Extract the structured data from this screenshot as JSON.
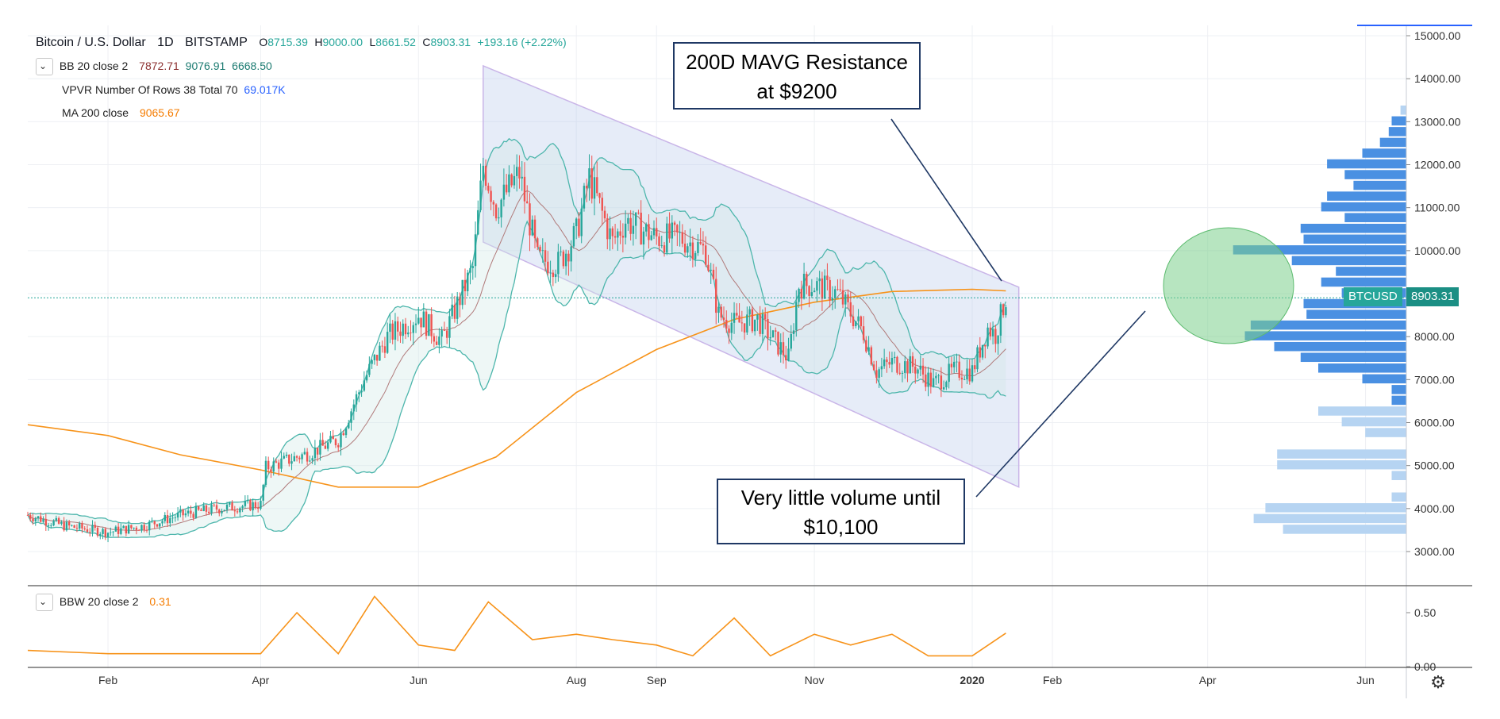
{
  "header": {
    "symbol": "Bitcoin / U.S. Dollar",
    "interval": "1D",
    "exchange": "BITSTAMP",
    "open_label": "O",
    "open": "8715.39",
    "high_label": "H",
    "high": "9000.00",
    "low_label": "L",
    "low": "8661.52",
    "close_label": "C",
    "close": "8903.31",
    "change": "+193.16 (+2.22%)"
  },
  "indicators": {
    "bb": {
      "name": "BB 20 close 2",
      "basis": "7872.71",
      "upper": "9076.91",
      "lower": "6668.50"
    },
    "vpvr": {
      "name": "VPVR Number Of Rows 38 Total 70",
      "value": "69.017K"
    },
    "ma": {
      "name": "MA 200 close",
      "value": "9065.67"
    },
    "bbw": {
      "name": "BBW 20 close 2",
      "value": "0.31"
    }
  },
  "annotations": {
    "resistance_line1": "200D MAVG Resistance",
    "resistance_line2": "at $9200",
    "volume_line1": "Very little volume until",
    "volume_line2": "$10,100"
  },
  "price_tags": {
    "symbol_tag": "BTCUSD",
    "last_price": "8903.31"
  },
  "colors": {
    "up": "#26a69a",
    "down": "#ef5350",
    "ma200": "#f7931a",
    "bb_band": "#4db6ac",
    "channel": "#b7c9ea",
    "vol_dark": "#4a90e2",
    "vol_light": "#b6d4f2",
    "highlight": "#7ccf8c",
    "annotation_border": "#1f3864"
  },
  "chart_data": [
    {
      "type": "line",
      "title": "",
      "xlabel": "",
      "ylabel": "",
      "x_ticks": [
        "Feb",
        "Apr",
        "Jun",
        "Aug",
        "Sep",
        "Nov",
        "2020",
        "Feb",
        "Apr",
        "Jun"
      ],
      "y_ticks": [
        "3000.00",
        "4000.00",
        "5000.00",
        "6000.00",
        "7000.00",
        "8000.00",
        "9000.00",
        "10000.00",
        "11000.00",
        "12000.00",
        "13000.00",
        "14000.00",
        "15000.00"
      ],
      "ylim": [
        2500,
        15300
      ],
      "series": [
        {
          "name": "",
          "dates": [
            "2019-01-01",
            "2019-01-15",
            "2019-02-01",
            "2019-02-15",
            "2019-03-01",
            "2019-03-15",
            "2019-04-01",
            "2019-04-03",
            "2019-04-20",
            "2019-05-01",
            "2019-05-11",
            "2019-05-20",
            "2019-06-01",
            "2019-06-10",
            "2019-06-22",
            "2019-06-26",
            "2019-07-01",
            "2019-07-10",
            "2019-07-17",
            "2019-07-25",
            "2019-08-01",
            "2019-08-06",
            "2019-08-15",
            "2019-08-20",
            "2019-09-01",
            "2019-09-10",
            "2019-09-20",
            "2019-09-25",
            "2019-10-01",
            "2019-10-10",
            "2019-10-22",
            "2019-10-26",
            "2019-11-01",
            "2019-11-10",
            "2019-11-20",
            "2019-11-25",
            "2019-12-01",
            "2019-12-10",
            "2019-12-17",
            "2019-12-25",
            "2020-01-01",
            "2020-01-07",
            "2020-01-10",
            "2020-01-14"
          ],
          "values": [
            3850,
            3600,
            3450,
            3600,
            3850,
            4000,
            4100,
            4950,
            5300,
            5600,
            7000,
            8000,
            8500,
            7900,
            9600,
            12000,
            11000,
            11800,
            9800,
            9700,
            10400,
            11700,
            10200,
            10700,
            10300,
            10300,
            10000,
            8500,
            8300,
            8400,
            7500,
            9200,
            9200,
            9000,
            8100,
            7200,
            7400,
            7300,
            6900,
            7200,
            7200,
            8200,
            8050,
            8903
          ]
        },
        {
          "name": "MA 200 close",
          "dates": [
            "2019-01-01",
            "2019-02-01",
            "2019-03-01",
            "2019-04-01",
            "2019-05-01",
            "2019-06-01",
            "2019-07-01",
            "2019-08-01",
            "2019-09-01",
            "2019-10-01",
            "2019-11-01",
            "2019-12-01",
            "2020-01-01",
            "2020-01-14"
          ],
          "values": [
            5950,
            5700,
            5250,
            4900,
            4500,
            4500,
            5200,
            6700,
            7700,
            8400,
            8800,
            9050,
            9100,
            9065
          ]
        },
        {
          "name": "BBW 20 close 2",
          "dates": [
            "2019-01-01",
            "2019-02-01",
            "2019-03-01",
            "2019-04-01",
            "2019-04-15",
            "2019-05-01",
            "2019-05-15",
            "2019-06-01",
            "2019-06-15",
            "2019-06-28",
            "2019-07-15",
            "2019-08-01",
            "2019-08-15",
            "2019-09-01",
            "2019-09-15",
            "2019-10-01",
            "2019-10-15",
            "2019-11-01",
            "2019-11-15",
            "2019-12-01",
            "2019-12-15",
            "2020-01-01",
            "2020-01-14"
          ],
          "values": [
            0.15,
            0.12,
            0.12,
            0.12,
            0.5,
            0.12,
            0.65,
            0.2,
            0.15,
            0.6,
            0.25,
            0.3,
            0.25,
            0.2,
            0.1,
            0.45,
            0.1,
            0.3,
            0.2,
            0.3,
            0.1,
            0.1,
            0.31
          ]
        }
      ]
    },
    {
      "type": "bar",
      "title": "VPVR Number Of Rows 38 Total 70",
      "orientation": "horizontal",
      "y_values": [
        3500,
        3750,
        4000,
        4250,
        4750,
        5000,
        5250,
        5750,
        6000,
        6250,
        6500,
        6750,
        7000,
        7250,
        7500,
        7750,
        8000,
        8250,
        8500,
        8750,
        9000,
        9250,
        9500,
        9750,
        10000,
        10250,
        10500,
        10750,
        11000,
        11250,
        11500,
        11750,
        12000,
        12250,
        12500,
        12750,
        13000,
        13250
      ],
      "values": [
        0.42,
        0.52,
        0.48,
        0.05,
        0.05,
        0.44,
        0.44,
        0.14,
        0.22,
        0.3,
        0.05,
        0.05,
        0.15,
        0.3,
        0.36,
        0.45,
        0.55,
        0.53,
        0.34,
        0.35,
        0.22,
        0.29,
        0.24,
        0.39,
        0.59,
        0.35,
        0.36,
        0.21,
        0.29,
        0.27,
        0.18,
        0.21,
        0.27,
        0.15,
        0.09,
        0.06,
        0.05,
        0.02
      ],
      "bar_colors": [
        "light",
        "light",
        "light",
        "light",
        "light",
        "light",
        "light",
        "light",
        "light",
        "light",
        "dark",
        "dark",
        "dark",
        "dark",
        "dark",
        "dark",
        "dark",
        "dark",
        "dark",
        "dark",
        "dark",
        "dark",
        "dark",
        "dark",
        "dark",
        "dark",
        "dark",
        "dark",
        "dark",
        "dark",
        "dark",
        "dark",
        "dark",
        "dark",
        "dark",
        "dark",
        "dark",
        "light"
      ]
    }
  ]
}
